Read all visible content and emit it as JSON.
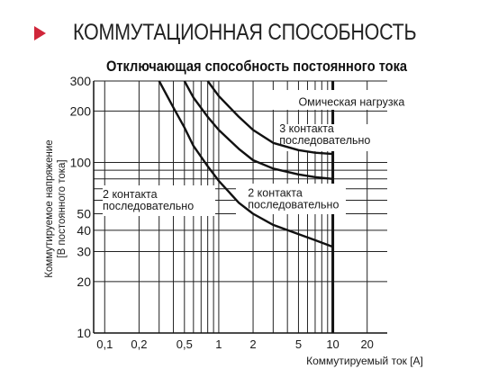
{
  "header": {
    "title": "КОММУТАЦИОННАЯ СПОСОБНОСТЬ",
    "accent_color": "#d0263a"
  },
  "chart_data": {
    "type": "line",
    "title": "Отключающая способность постоянного тока",
    "xlabel": "Коммутируемый ток [А]",
    "ylabel": [
      "Коммутируемое напряжение",
      "[В постоянного тока]"
    ],
    "x_scale": "log",
    "y_scale": "log",
    "xlim": [
      0.08,
      30
    ],
    "ylim": [
      10,
      300
    ],
    "x_ticks": [
      "0,1",
      "0,2",
      "0,5",
      "1",
      "2",
      "5",
      "10",
      "20"
    ],
    "y_ticks": [
      "10",
      "20",
      "30",
      "40",
      "50",
      "100",
      "200",
      "300"
    ],
    "grid": true,
    "series": [
      {
        "name": "2 контакта последовательно",
        "points": [
          [
            0.3,
            300
          ],
          [
            0.4,
            210
          ],
          [
            0.5,
            160
          ],
          [
            0.6,
            125
          ],
          [
            0.8,
            95
          ],
          [
            1,
            78
          ],
          [
            1.5,
            58
          ],
          [
            2,
            50
          ],
          [
            3,
            43
          ],
          [
            5,
            38
          ],
          [
            7,
            35
          ],
          [
            10,
            32
          ]
        ]
      },
      {
        "name": "2 контакта последовательно",
        "points": [
          [
            0.5,
            300
          ],
          [
            0.6,
            240
          ],
          [
            0.8,
            185
          ],
          [
            1,
            155
          ],
          [
            1.5,
            120
          ],
          [
            2,
            103
          ],
          [
            3,
            92
          ],
          [
            5,
            85
          ],
          [
            7,
            82
          ],
          [
            10,
            80
          ]
        ]
      },
      {
        "name": "3 контакта последовательно",
        "points": [
          [
            0.8,
            300
          ],
          [
            1,
            245
          ],
          [
            1.5,
            185
          ],
          [
            2,
            155
          ],
          [
            3,
            130
          ],
          [
            5,
            118
          ],
          [
            7,
            114
          ],
          [
            10,
            112
          ]
        ]
      }
    ],
    "annotations": [
      {
        "text": "Омическая нагрузка",
        "x": 5,
        "y": 215
      },
      {
        "lines": [
          "3 контакта",
          "последовательно"
        ],
        "x": 3.4,
        "y": 150
      },
      {
        "lines": [
          "2 контакта",
          "последовательно"
        ],
        "x": 0.096,
        "y": 62
      },
      {
        "lines": [
          "2 контакта",
          "последовательно"
        ],
        "x": 1.8,
        "y": 63
      }
    ]
  }
}
